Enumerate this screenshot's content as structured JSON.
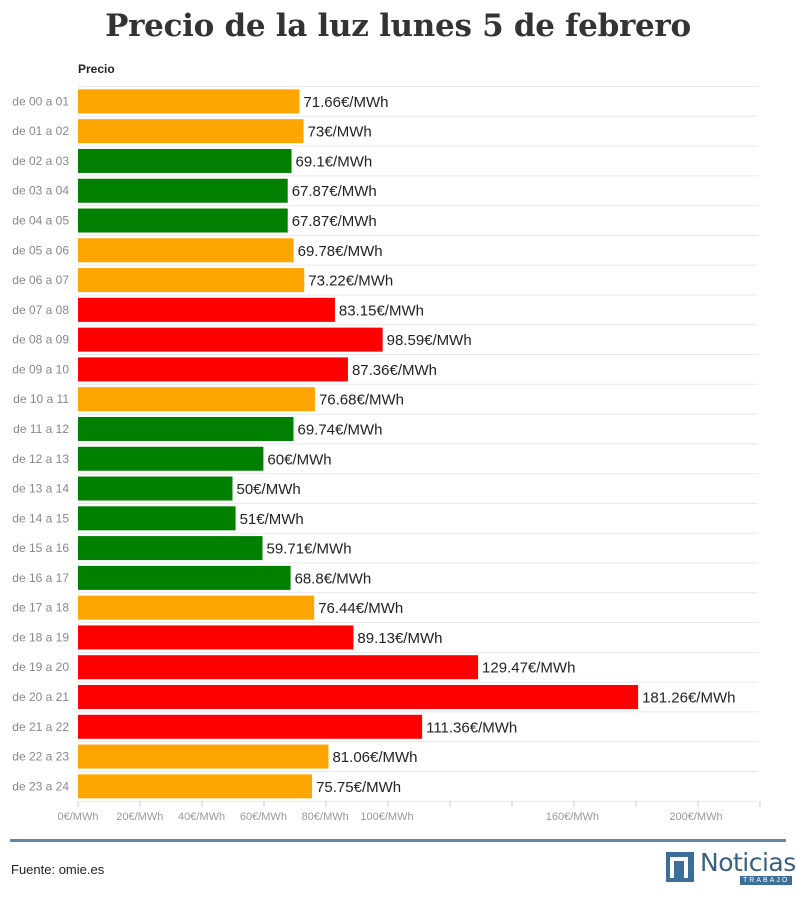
{
  "chart_data": {
    "type": "bar",
    "orientation": "horizontal",
    "title": "Precio de la luz lunes 5 de febrero",
    "column_label": "Precio",
    "value_suffix": "€/MWh",
    "categories": [
      "de 00 a 01",
      "de 01 a 02",
      "de 02 a 03",
      "de 03 a 04",
      "de 04 a 05",
      "de 05 a 06",
      "de 06 a 07",
      "de 07 a 08",
      "de 08 a 09",
      "de 09 a 10",
      "de 10 a 11",
      "de 11 a 12",
      "de 12 a 13",
      "de 13 a 14",
      "de 14 a 15",
      "de 15 a 16",
      "de 16 a 17",
      "de 17 a 18",
      "de 18 a 19",
      "de 19 a 20",
      "de 20 a 21",
      "de 21 a 22",
      "de 22 a 23",
      "de 23 a 24"
    ],
    "values": [
      71.66,
      73,
      69.1,
      67.87,
      67.87,
      69.78,
      73.22,
      83.15,
      98.59,
      87.36,
      76.68,
      69.74,
      60,
      50,
      51,
      59.71,
      68.8,
      76.44,
      89.13,
      129.47,
      181.26,
      111.36,
      81.06,
      75.75
    ],
    "value_labels": [
      "71.66€/MWh",
      "73€/MWh",
      "69.1€/MWh",
      "67.87€/MWh",
      "67.87€/MWh",
      "69.78€/MWh",
      "73.22€/MWh",
      "83.15€/MWh",
      "98.59€/MWh",
      "87.36€/MWh",
      "76.68€/MWh",
      "69.74€/MWh",
      "60€/MWh",
      "50€/MWh",
      "51€/MWh",
      "59.71€/MWh",
      "68.8€/MWh",
      "76.44€/MWh",
      "89.13€/MWh",
      "129.47€/MWh",
      "181.26€/MWh",
      "111.36€/MWh",
      "81.06€/MWh",
      "75.75€/MWh"
    ],
    "bar_levels": [
      "medium",
      "medium",
      "low",
      "low",
      "low",
      "medium",
      "medium",
      "high",
      "high",
      "high",
      "medium",
      "low",
      "low",
      "low",
      "low",
      "low",
      "low",
      "medium",
      "high",
      "high",
      "high",
      "high",
      "medium",
      "medium"
    ],
    "level_colors": {
      "low": "#008000",
      "medium": "#ffa500",
      "high": "#ff0000"
    },
    "x_ticks": [
      0,
      20,
      40,
      60,
      80,
      100,
      160,
      200
    ],
    "x_tick_labels": [
      "0€/MWh",
      "20€/MWh",
      "40€/MWh",
      "60€/MWh",
      "80€/MWh",
      "100€/MWh",
      "160€/MWh",
      "200€/MWh"
    ],
    "xlim": [
      0,
      220
    ],
    "grid": true
  },
  "footer": {
    "source": "Fuente: omie.es",
    "logo_name": "Noticias",
    "logo_sub": "TRABAJO",
    "accent_color": "#5b87a8"
  }
}
